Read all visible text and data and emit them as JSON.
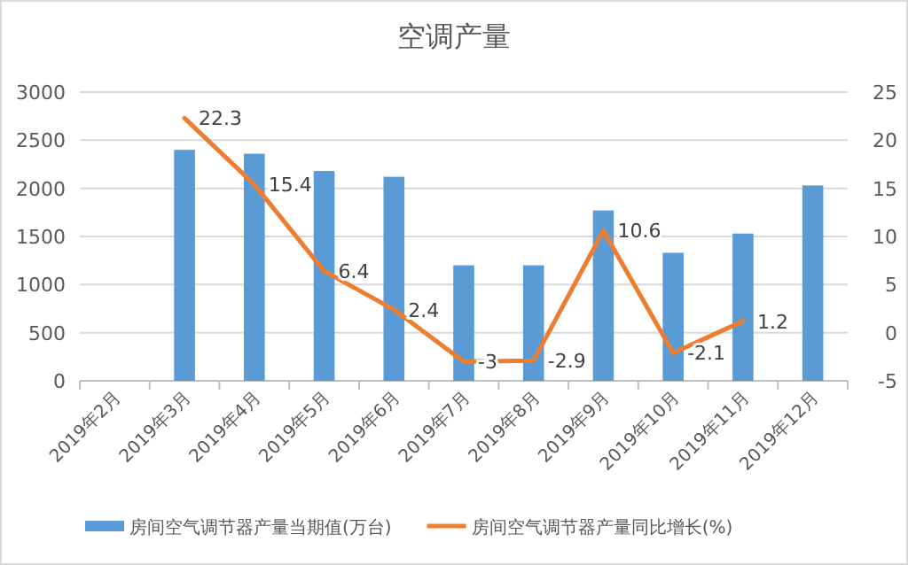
{
  "chart_data": {
    "type": "bar",
    "title": "空调产量",
    "categories": [
      "2019年2月",
      "2019年3月",
      "2019年4月",
      "2019年5月",
      "2019年6月",
      "2019年7月",
      "2019年8月",
      "2019年9月",
      "2019年10月",
      "2019年11月",
      "2019年12月"
    ],
    "series": [
      {
        "name": "房间空气调节器产量当期值(万台)",
        "color": "#5b9bd5",
        "values": [
          null,
          2400,
          2360,
          2180,
          2120,
          1200,
          1200,
          1770,
          1330,
          1530,
          2030
        ]
      },
      {
        "name": "房间空气调节器产量同比增长(%)",
        "type": "line",
        "axis": "y2",
        "color": "#ed7d31",
        "values": [
          null,
          22.3,
          15.4,
          6.4,
          2.4,
          -3,
          -2.9,
          10.6,
          -2.1,
          1.2,
          null
        ],
        "data_labels": true
      }
    ],
    "ylim": [
      0,
      3000
    ],
    "yticks": [
      0,
      500,
      1000,
      1500,
      2000,
      2500,
      3000
    ],
    "y2lim": [
      -5,
      25
    ],
    "y2ticks": [
      -5,
      0,
      5,
      10,
      15,
      20,
      25
    ],
    "grid": "y",
    "legend": "bottom"
  }
}
